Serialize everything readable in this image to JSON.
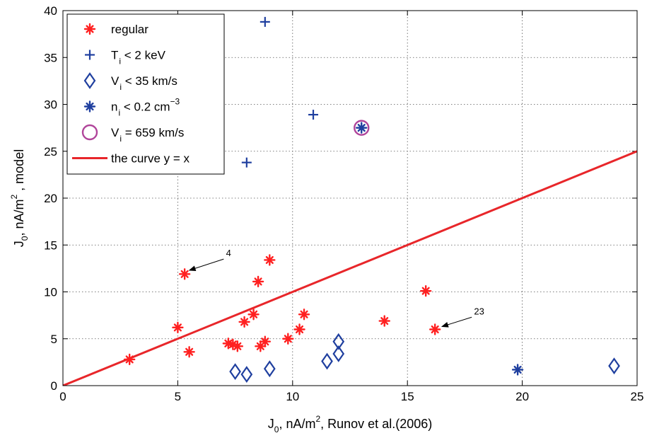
{
  "chart_data": {
    "type": "scatter",
    "xlabel": {
      "main": "J",
      "sub": "0",
      "rest": ", nA/m",
      "sup": "2",
      "tail": ", Runov et al.(2006)"
    },
    "ylabel": {
      "main": "J",
      "sub": "0",
      "rest": ", nA/m",
      "sup": "2",
      "tail": " , model"
    },
    "xlim": [
      0,
      25
    ],
    "ylim": [
      0,
      40
    ],
    "xticks": [
      0,
      5,
      10,
      15,
      20,
      25
    ],
    "yticks": [
      0,
      5,
      10,
      15,
      20,
      25,
      30,
      35,
      40
    ],
    "grid": true,
    "legend_position": "top-left",
    "legend": [
      {
        "marker": "asterisk",
        "color": "#ff2020",
        "parts": [
          "regular"
        ]
      },
      {
        "marker": "plus",
        "color": "#1f3f9f",
        "parts": [
          "T",
          "i",
          " < 2 keV"
        ]
      },
      {
        "marker": "diamond",
        "color": "#1f3f9f",
        "parts": [
          "V",
          "i",
          " < 35 km/s"
        ]
      },
      {
        "marker": "asterisk",
        "color": "#1f3f9f",
        "parts": [
          "n",
          "i",
          " < 0.2 cm",
          "−3"
        ]
      },
      {
        "marker": "circle",
        "color": "#b0449a",
        "parts": [
          "V",
          "i",
          " = 659 km/s"
        ]
      },
      {
        "marker": "line",
        "color": "#e8262a",
        "parts": [
          "the curve y = x"
        ]
      }
    ],
    "series": [
      {
        "marker": "asterisk",
        "color": "#ff2020",
        "points": [
          [
            2.9,
            2.8
          ],
          [
            5.0,
            6.2
          ],
          [
            5.3,
            11.9
          ],
          [
            5.5,
            3.6
          ],
          [
            7.2,
            4.5
          ],
          [
            7.4,
            4.4
          ],
          [
            7.6,
            4.2
          ],
          [
            7.9,
            6.8
          ],
          [
            8.3,
            7.6
          ],
          [
            8.5,
            11.1
          ],
          [
            8.6,
            4.2
          ],
          [
            8.8,
            4.7
          ],
          [
            9.0,
            13.4
          ],
          [
            9.8,
            5.0
          ],
          [
            10.3,
            6.0
          ],
          [
            10.5,
            7.6
          ],
          [
            14.0,
            6.9
          ],
          [
            15.8,
            10.1
          ],
          [
            16.2,
            6.0
          ]
        ]
      },
      {
        "marker": "plus",
        "color": "#1f3f9f",
        "points": [
          [
            8.0,
            23.8
          ],
          [
            8.8,
            38.8
          ],
          [
            10.9,
            28.9
          ]
        ]
      },
      {
        "marker": "diamond",
        "color": "#1f3f9f",
        "points": [
          [
            7.5,
            1.5
          ],
          [
            8.0,
            1.2
          ],
          [
            9.0,
            1.8
          ],
          [
            11.5,
            2.6
          ],
          [
            12.0,
            3.4
          ],
          [
            12.0,
            4.7
          ],
          [
            24.0,
            2.1
          ]
        ]
      },
      {
        "marker": "asterisk",
        "color": "#1f3f9f",
        "points": [
          [
            13.0,
            27.5
          ],
          [
            19.8,
            1.7
          ]
        ]
      },
      {
        "marker": "circle",
        "color": "#b0449a",
        "points": [
          [
            13.0,
            27.5
          ]
        ]
      },
      {
        "marker": "line",
        "color": "#e8262a",
        "points": [
          [
            0,
            0
          ],
          [
            25,
            25
          ]
        ]
      }
    ],
    "annotations": [
      {
        "text": "4",
        "text_at": [
          7.1,
          13.8
        ],
        "arrow_from": [
          7.0,
          13.5
        ],
        "arrow_to": [
          5.5,
          12.3
        ]
      },
      {
        "text": "23",
        "text_at": [
          17.9,
          7.6
        ],
        "arrow_from": [
          17.8,
          7.3
        ],
        "arrow_to": [
          16.5,
          6.3
        ]
      }
    ]
  }
}
